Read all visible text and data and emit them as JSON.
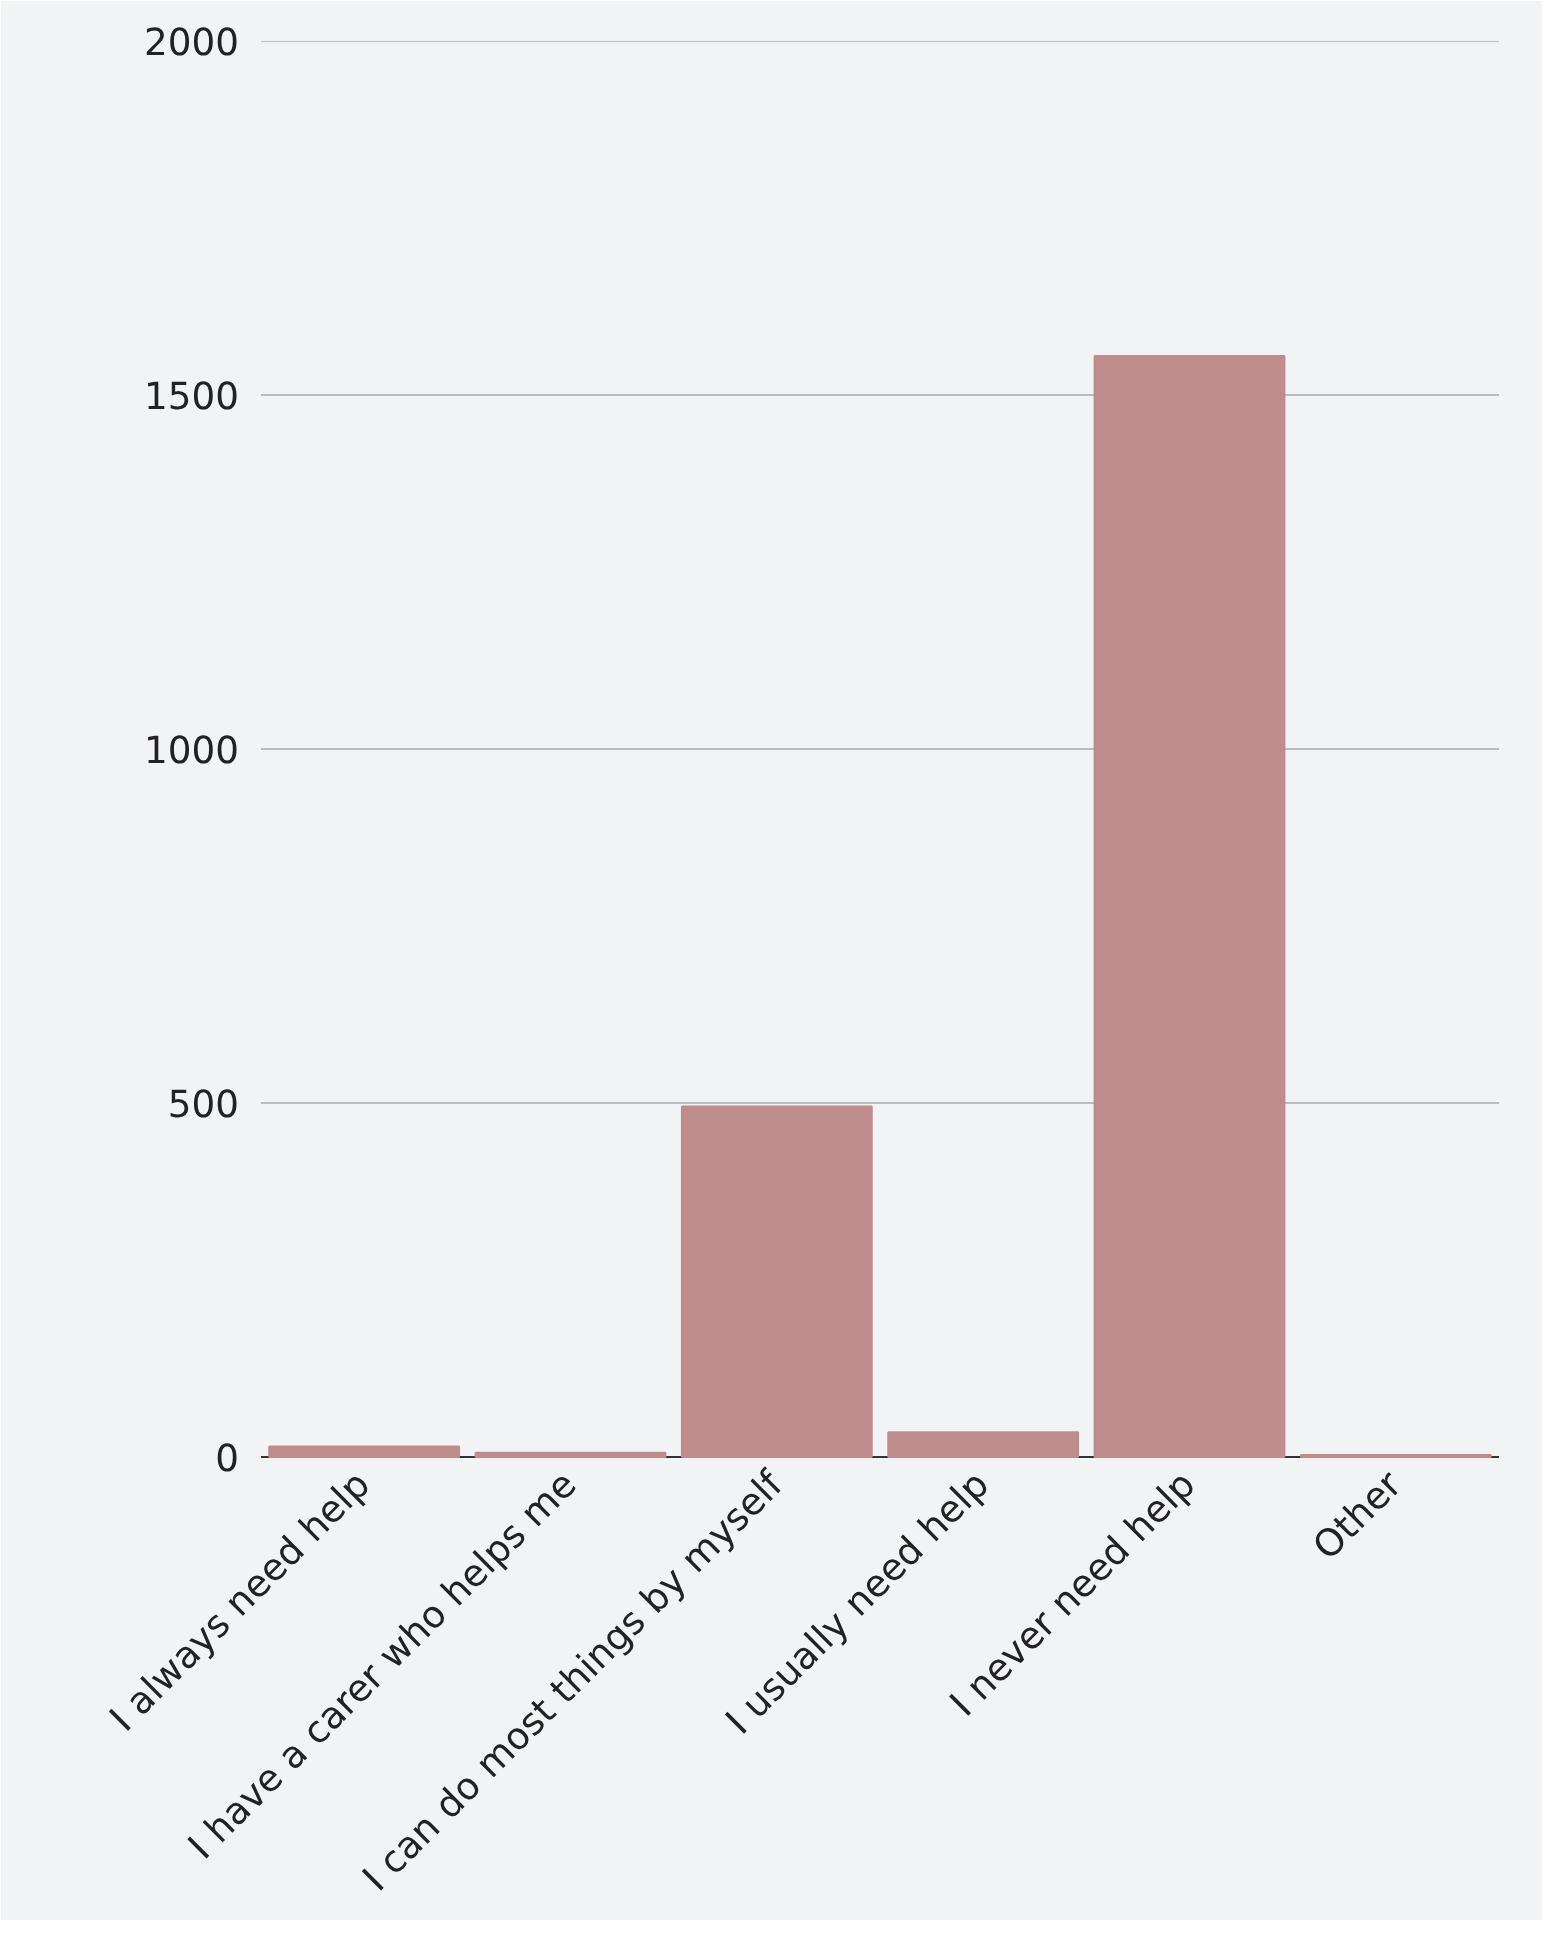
{
  "chart_data": {
    "type": "bar",
    "categories": [
      "I always need help",
      "I have a carer who helps me",
      "I can do most things by myself",
      "I usually need help",
      "I never need help",
      "Other"
    ],
    "values": [
      15,
      6,
      495,
      35,
      1555,
      3
    ],
    "color": "#bf8c8e",
    "ylim": [
      0,
      2000
    ],
    "yticks": [
      0,
      500,
      1000,
      1500,
      2000
    ],
    "grid": "y"
  }
}
